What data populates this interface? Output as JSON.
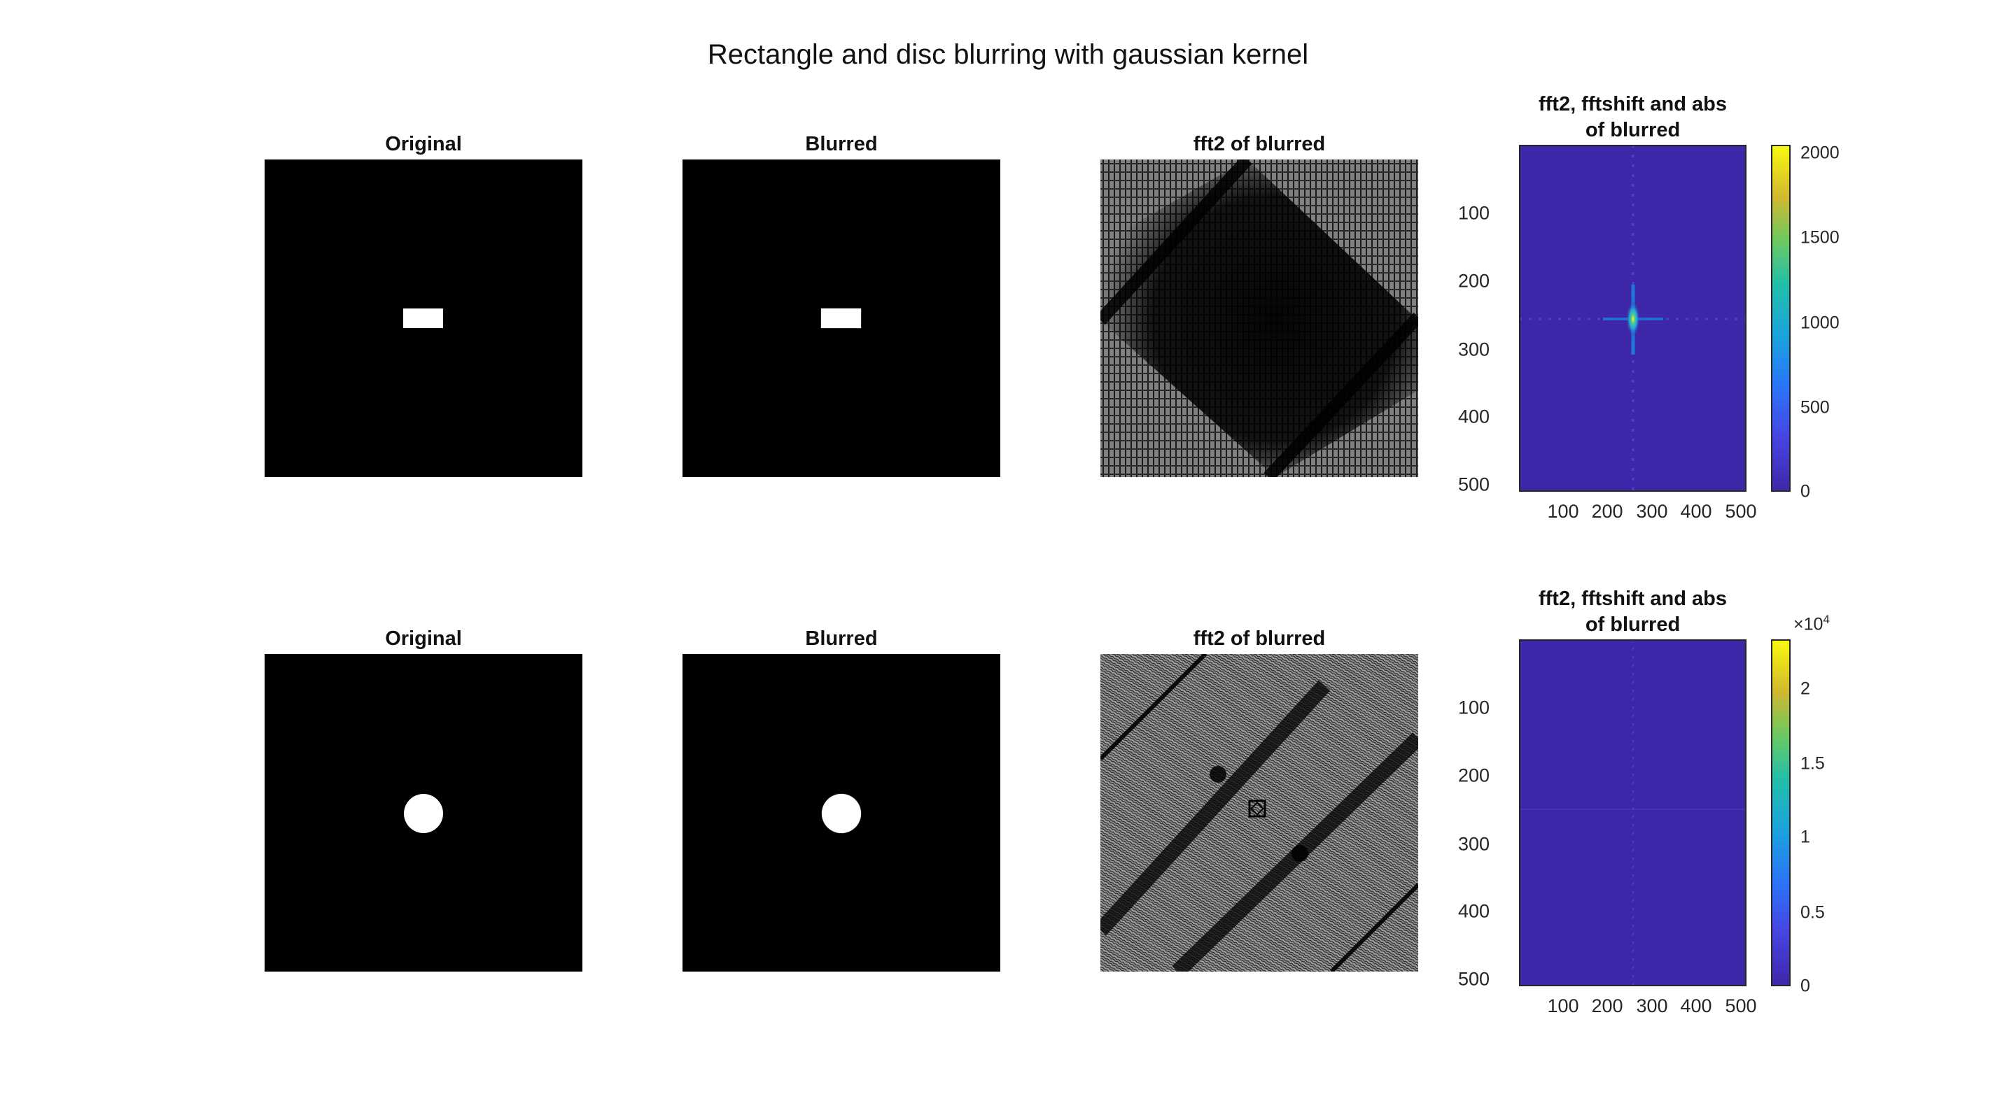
{
  "figure": {
    "suptitle": "Rectangle and disc blurring with gaussian kernel"
  },
  "chart_data": [
    {
      "type": "image",
      "title": "Original",
      "shape": "rectangle",
      "colormap": "gray",
      "content": "white rectangle on black background"
    },
    {
      "type": "image",
      "title": "Blurred",
      "shape": "rectangle",
      "colormap": "gray",
      "content": "blurred white rectangle on black background"
    },
    {
      "type": "image",
      "title": "fft2 of blurred",
      "shape": "rectangle",
      "colormap": "gray",
      "content": "raw fft2 pattern of blurred rectangle"
    },
    {
      "type": "heatmap",
      "title_lines": [
        "fft2, fftshift and abs",
        "of blurred"
      ],
      "colormap": "parula",
      "xlim": [
        1,
        512
      ],
      "ylim": [
        1,
        512
      ],
      "x_ticks": [
        100,
        200,
        300,
        400,
        500
      ],
      "y_ticks": [
        100,
        200,
        300,
        400,
        500
      ],
      "x_tick_labels": [
        "100",
        "200",
        "300",
        "400",
        "500"
      ],
      "y_tick_labels": [
        "100",
        "200",
        "300",
        "400",
        "500"
      ],
      "peak_center": [
        257,
        257
      ],
      "colorbar": {
        "limits": [
          0,
          2000
        ],
        "ticks": [
          0,
          500,
          1000,
          1500,
          2000
        ],
        "tick_labels": [
          "0",
          "500",
          "1000",
          "1500",
          "2000"
        ],
        "exponent": ""
      }
    },
    {
      "type": "image",
      "title": "Original",
      "shape": "disc",
      "colormap": "gray",
      "content": "white disc on black background"
    },
    {
      "type": "image",
      "title": "Blurred",
      "shape": "disc",
      "colormap": "gray",
      "content": "blurred white disc on black background"
    },
    {
      "type": "image",
      "title": "fft2 of blurred",
      "shape": "disc",
      "colormap": "gray",
      "content": "raw fft2 pattern of blurred disc"
    },
    {
      "type": "heatmap",
      "title_lines": [
        "fft2, fftshift and abs",
        "of blurred"
      ],
      "colormap": "parula",
      "xlim": [
        1,
        512
      ],
      "ylim": [
        1,
        512
      ],
      "x_ticks": [
        100,
        200,
        300,
        400,
        500
      ],
      "y_ticks": [
        100,
        200,
        300,
        400,
        500
      ],
      "x_tick_labels": [
        "100",
        "200",
        "300",
        "400",
        "500"
      ],
      "y_tick_labels": [
        "100",
        "200",
        "300",
        "400",
        "500"
      ],
      "peak_center": [
        257,
        257
      ],
      "colorbar": {
        "limits": [
          0,
          2.3
        ],
        "ticks": [
          0,
          0.5,
          1,
          1.5,
          2
        ],
        "tick_labels": [
          "0",
          "0.5",
          "1",
          "1.5",
          "2"
        ],
        "exponent": "×10",
        "exponent_power": "4"
      }
    }
  ]
}
